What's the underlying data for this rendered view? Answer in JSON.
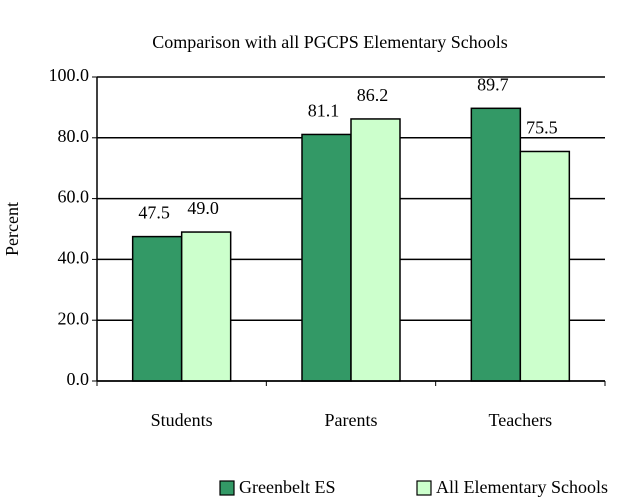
{
  "chart_data": {
    "type": "bar",
    "title": "Comparison with all PGCPS Elementary Schools",
    "y_label": "Percent",
    "categories": [
      "Students",
      "Parents",
      "Teachers"
    ],
    "series": [
      {
        "name": "Greenbelt ES",
        "color": "#339966",
        "values": [
          47.5,
          81.1,
          89.7
        ],
        "value_labels": [
          "47.5",
          "81.1",
          "89.7"
        ]
      },
      {
        "name": "All Elementary Schools",
        "color": "#ccffcc",
        "values": [
          49,
          86.2,
          75.5
        ],
        "value_labels": [
          "49.0",
          "86.2",
          "75.5"
        ]
      }
    ],
    "ylim": [
      0,
      100
    ],
    "yticks": [
      {
        "value": 0,
        "label": "0.0"
      },
      {
        "value": 20,
        "label": "20.0"
      },
      {
        "value": 40,
        "label": "40.0"
      },
      {
        "value": 60,
        "label": "60.0"
      },
      {
        "value": 80,
        "label": "80.0"
      },
      {
        "value": 100,
        "label": "100.0"
      }
    ],
    "grid": true,
    "legend": "bottom"
  }
}
